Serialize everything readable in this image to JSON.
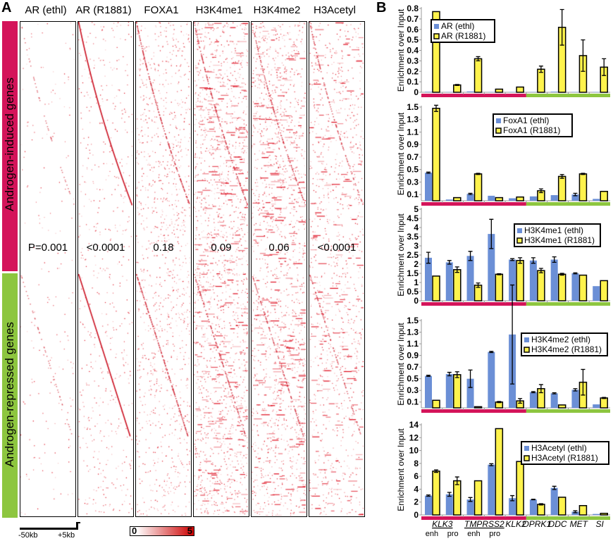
{
  "panel_a": {
    "letter": "A",
    "columns": [
      "AR (ethl)",
      "AR (R1881)",
      "FOXA1",
      "H3K4me1",
      "H3K4me2",
      "H3Acetyl"
    ],
    "p_values": [
      "P=0.001",
      "<0.0001",
      "0.18",
      "0.09",
      "0.06",
      "<0.0001"
    ],
    "groups": [
      {
        "label": "Androgen-induced genes",
        "color": "#d4145a"
      },
      {
        "label": "Androgen-repressed genes",
        "color": "#8dc63f"
      }
    ],
    "scale_bar": {
      "left": "-50kb",
      "right": "+5kb"
    },
    "color_key": {
      "min": "0",
      "max": "5",
      "low_color": "#ffffff",
      "high_color": "#cc0000"
    }
  },
  "panel_b": {
    "letter": "B"
  },
  "chart_data": [
    {
      "type": "bar",
      "ylabel": "Enrichment over Input",
      "ylim": [
        0,
        0.8
      ],
      "yticks": [
        "0",
        "0.1",
        "0.2",
        "0.3",
        "0.4",
        "0.5",
        "0.6",
        "0.7",
        "0.8"
      ],
      "categories": [
        "KLK3 enh",
        "KLK3 pro",
        "TMPRSS2 enh",
        "TMPRSS2 pro",
        "KLK2",
        "OPRK1",
        "DDC",
        "MET",
        "SI"
      ],
      "series": [
        {
          "name": "AR (ethl)",
          "values": [
            0.005,
            0.003,
            0.008,
            0.003,
            0.003,
            0.003,
            0.006,
            0.003,
            0.003
          ],
          "errors": [
            0,
            0,
            0,
            0,
            0,
            0,
            0,
            0,
            0
          ]
        },
        {
          "name": "AR (R1881)",
          "values": [
            0.77,
            0.07,
            0.32,
            0.03,
            0.05,
            0.22,
            0.62,
            0.35,
            0.24
          ],
          "errors": [
            0,
            0.005,
            0.02,
            0,
            0,
            0.03,
            0.17,
            0.15,
            0.08
          ]
        }
      ]
    },
    {
      "type": "bar",
      "ylabel": "Enrichment over Input",
      "ylim": [
        0,
        1.5
      ],
      "yticks": [
        "0.1",
        "0.3",
        "0.5",
        "0.7",
        "0.9",
        "1.1",
        "1.3",
        "1.5"
      ],
      "categories": [
        "KLK3 enh",
        "KLK3 pro",
        "TMPRSS2 enh",
        "TMPRSS2 pro",
        "KLK2",
        "OPRK1",
        "DDC",
        "MET",
        "SI"
      ],
      "series": [
        {
          "name": "FoxA1 (ethl)",
          "values": [
            0.45,
            0.02,
            0.11,
            0.08,
            0.04,
            0.07,
            0.09,
            0.1,
            0.03
          ],
          "errors": [
            0.01,
            0,
            0.01,
            0,
            0,
            0,
            0,
            0.02,
            0
          ]
        },
        {
          "name": "FoxA1 (R1881)",
          "values": [
            1.48,
            0.05,
            0.43,
            0.05,
            0.06,
            0.16,
            0.39,
            0.43,
            0.15
          ],
          "errors": [
            0.05,
            0,
            0.01,
            0,
            0,
            0.03,
            0.03,
            0.01,
            0
          ]
        }
      ]
    },
    {
      "type": "bar",
      "ylabel": "Enrichment over Input",
      "ylim": [
        0,
        5
      ],
      "yticks": [
        "0",
        "0.5",
        "1",
        "1.5",
        "2",
        "2.5",
        "3",
        "3.5",
        "4",
        "4.5",
        "5"
      ],
      "categories": [
        "KLK3 enh",
        "KLK3 pro",
        "TMPRSS2 enh",
        "TMPRSS2 pro",
        "KLK2",
        "OPRK1",
        "DDC",
        "MET",
        "SI"
      ],
      "series": [
        {
          "name": "H3K4me1 (ethl)",
          "values": [
            2.35,
            2.1,
            2.45,
            3.65,
            2.25,
            2.2,
            2.25,
            1.5,
            0.8
          ],
          "errors": [
            0.3,
            0.1,
            0.25,
            0.8,
            0.05,
            0.15,
            0.15,
            0.03,
            0
          ]
        },
        {
          "name": "H3K4me1 (R1881)",
          "values": [
            1.35,
            1.7,
            0.85,
            1.45,
            2.2,
            1.65,
            1.45,
            1.4,
            1.1
          ],
          "errors": [
            0,
            0.15,
            0.12,
            0.03,
            0.15,
            0.12,
            0.05,
            0,
            0
          ]
        }
      ]
    },
    {
      "type": "bar",
      "ylabel": "Enrichment over Input",
      "ylim": [
        0,
        1.5
      ],
      "yticks": [
        "0.1",
        "0.3",
        "0.5",
        "0.7",
        "0.9",
        "1.1",
        "1.3",
        "1.5"
      ],
      "categories": [
        "KLK3 enh",
        "KLK3 pro",
        "TMPRSS2 enh",
        "TMPRSS2 pro",
        "KLK2",
        "OPRK1",
        "DDC",
        "MET",
        "SI"
      ],
      "series": [
        {
          "name": "H3K4me2 (ethl)",
          "values": [
            0.55,
            0.58,
            0.5,
            0.96,
            1.26,
            0.27,
            0.25,
            0.31,
            0.06
          ],
          "errors": [
            0.01,
            0.03,
            0.15,
            0.01,
            0.85,
            0.01,
            0.01,
            0.02,
            0
          ]
        },
        {
          "name": "H3K4me2 (R1881)",
          "values": [
            0.13,
            0.57,
            0.02,
            0.1,
            0.12,
            0.33,
            0.05,
            0.44,
            0.17
          ],
          "errors": [
            0,
            0.05,
            0,
            0.01,
            0.04,
            0.07,
            0,
            0.22,
            0.01
          ]
        }
      ]
    },
    {
      "type": "bar",
      "ylabel": "Enrichment over Input",
      "ylim": [
        0,
        14
      ],
      "yticks": [
        "0",
        "2",
        "4",
        "6",
        "8",
        "10",
        "12",
        "14"
      ],
      "categories": [
        "KLK3 enh",
        "KLK3 pro",
        "TMPRSS2 enh",
        "TMPRSS2 pro",
        "KLK2",
        "OPRK1",
        "DDC",
        "MET",
        "SI"
      ],
      "series": [
        {
          "name": "H3Acetyl (ethl)",
          "values": [
            3.0,
            3.2,
            2.4,
            7.8,
            2.6,
            2.4,
            4.2,
            0.5,
            0.15
          ],
          "errors": [
            0.1,
            0.3,
            0.3,
            0.15,
            0.4,
            0.05,
            0.25,
            0.15,
            0
          ]
        },
        {
          "name": "H3Acetyl (R1881)",
          "values": [
            6.8,
            5.3,
            5.3,
            13.4,
            8.3,
            1.65,
            2.75,
            1.45,
            0.25
          ],
          "errors": [
            0.2,
            0.6,
            0,
            0,
            0,
            0.1,
            0,
            0,
            0
          ]
        }
      ]
    }
  ],
  "x_axis_labels": {
    "genes": [
      "KLK3",
      "TMPRSS2",
      "KLK2",
      "OPRK1",
      "DDC",
      "MET",
      "SI"
    ],
    "sub": [
      "enh",
      "pro",
      "enh",
      "pro"
    ]
  },
  "colors": {
    "ethl": "#6b8fd6",
    "r1881": "#fff34d",
    "induced": "#d4145a",
    "repressed": "#8dc63f",
    "heat": "#e0001a"
  }
}
